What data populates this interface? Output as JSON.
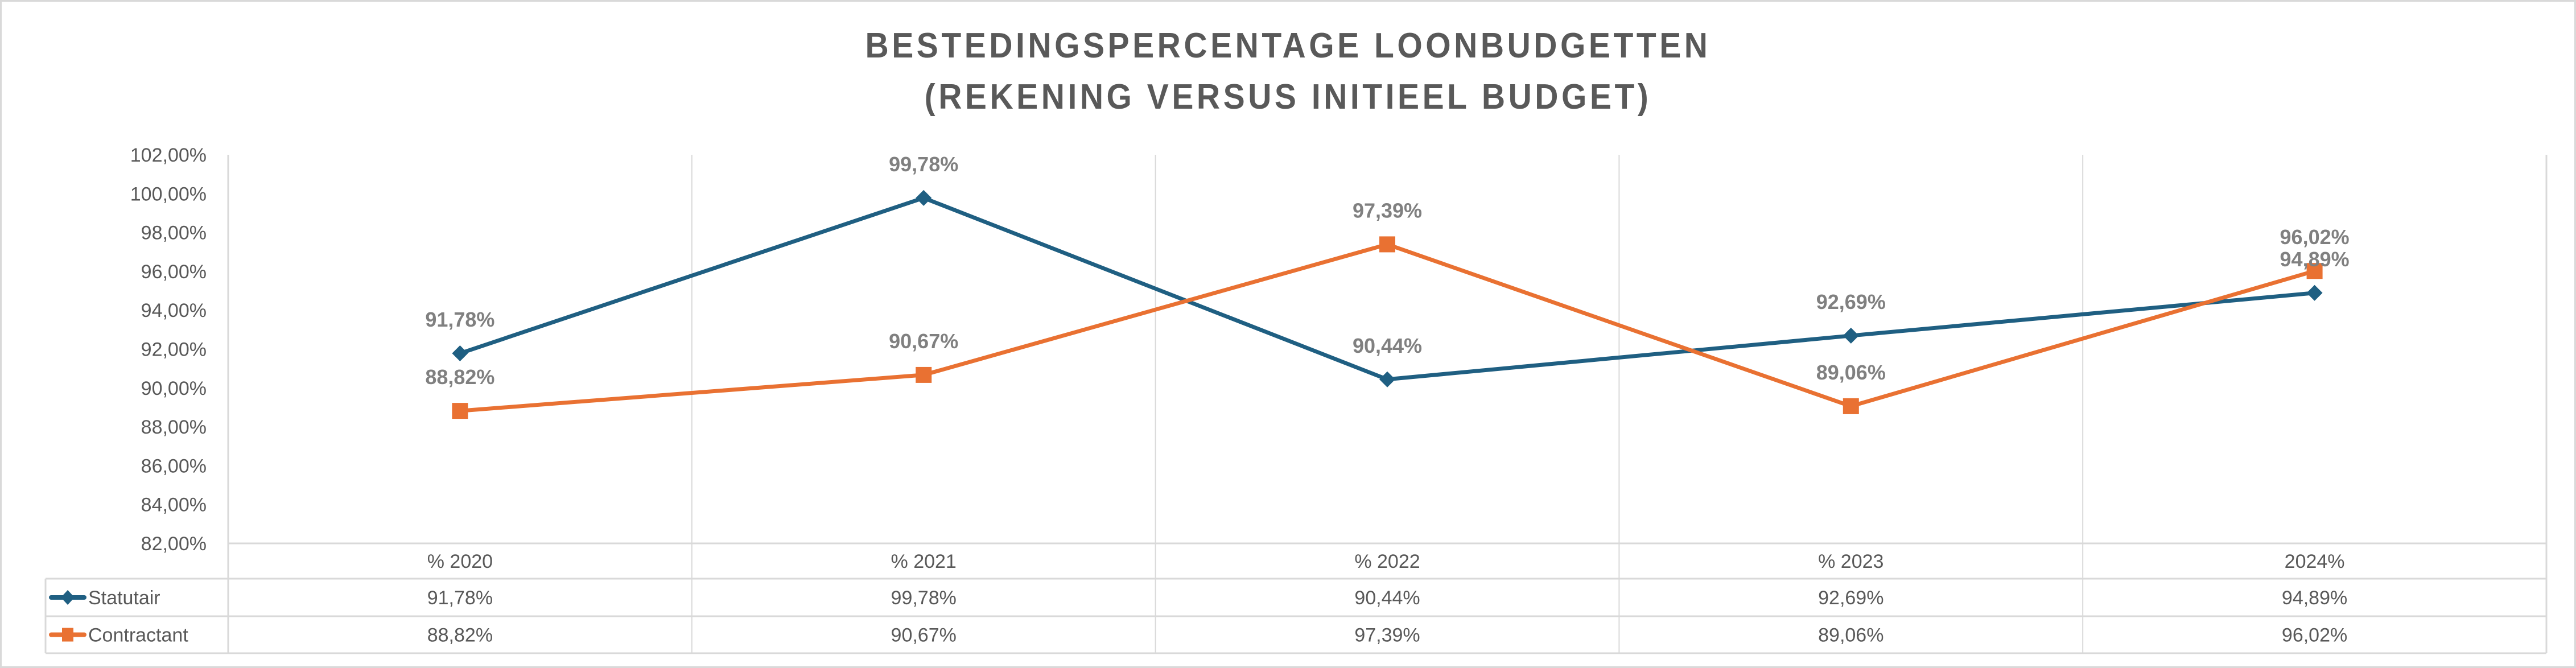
{
  "chart_data": {
    "type": "line",
    "title": "BESTEDINGSPERCENTAGE LOONBUDGETTEN",
    "subtitle": "(REKENING VERSUS INITIEEL BUDGET)",
    "title_lines": [
      "BESTEDINGSPERCENTAGE LOONBUDGETTEN",
      "(REKENING VERSUS INITIEEL BUDGET)"
    ],
    "xlabel": "",
    "ylabel": "",
    "categories": [
      "% 2020",
      "% 2021",
      "% 2022",
      "% 2023",
      "2024%"
    ],
    "ylim": [
      82,
      102
    ],
    "ytick_step": 2,
    "yticks": [
      "102,00%",
      "100,00%",
      "98,00%",
      "96,00%",
      "94,00%",
      "92,00%",
      "90,00%",
      "88,00%",
      "86,00%",
      "84,00%",
      "82,00%"
    ],
    "grid": "vertical",
    "legend": "data-table-left",
    "data_table": true,
    "series": [
      {
        "name": "Statutair",
        "color": "#1F5F82",
        "marker": "diamond",
        "values": [
          91.78,
          99.78,
          90.44,
          92.69,
          94.89
        ],
        "labels": [
          "91,78%",
          "99,78%",
          "90,44%",
          "92,69%",
          "94,89%"
        ]
      },
      {
        "name": "Contractant",
        "color": "#E97132",
        "marker": "square",
        "values": [
          88.82,
          90.67,
          97.39,
          89.06,
          96.02
        ],
        "labels": [
          "88,82%",
          "90,67%",
          "97,39%",
          "89,06%",
          "96,02%"
        ]
      }
    ]
  }
}
